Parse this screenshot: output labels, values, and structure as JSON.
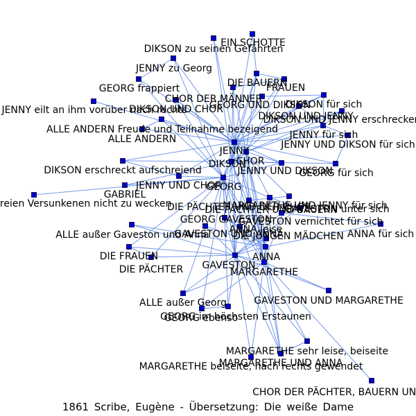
{
  "caption": "1861 Scribe, Eugène - Übersetzung: Die weiße Dame",
  "colors": {
    "edge": "#5b86e5",
    "node_fill": "#0000cc",
    "node_stroke": "#000033",
    "label": "#000000"
  },
  "nodes": [
    {
      "id": "ein_schotte",
      "label": "EIN SCHOTTE"
    },
    {
      "id": "dikson_gefaehrten",
      "label": "DIKSON zu seinen Gefährten"
    },
    {
      "id": "jenny_zu_georg",
      "label": "JENNY zu Georg"
    },
    {
      "id": "die_bauern",
      "label": "DIE BAUERN"
    },
    {
      "id": "frauen",
      "label": "FRAUEN"
    },
    {
      "id": "georg_frappiert",
      "label": "GEORG frappiert"
    },
    {
      "id": "chor_der_maenner",
      "label": "CHOR DER MÄNNER"
    },
    {
      "id": "georg_und_dikson",
      "label": "GEORG UND DIKSON"
    },
    {
      "id": "dikson_fuer_sich",
      "label": "DIKSON für sich"
    },
    {
      "id": "jenny_eilt",
      "label": "JENNY eilt an ihm vorüber nach rechts"
    },
    {
      "id": "dikson_und_chor",
      "label": "DIKSON UND CHOR"
    },
    {
      "id": "dikson_und_jenny",
      "label": "DIKSON UND JENNY"
    },
    {
      "id": "dikson_jenny_erschrecken",
      "label": "DIKSON UND JENNY erschrecken"
    },
    {
      "id": "alle_andern_freude",
      "label": "ALLE ANDERN Freude und Teilnahme bezeigend"
    },
    {
      "id": "jenny_fuer_sich",
      "label": "JENNY für sich"
    },
    {
      "id": "alle_andern",
      "label": "ALLE ANDERN"
    },
    {
      "id": "jenny_und_dikson_fs",
      "label": "JENNY UND DIKSON für sich"
    },
    {
      "id": "jenny",
      "label": "JENNY"
    },
    {
      "id": "chor",
      "label": "CHOR"
    },
    {
      "id": "dikson",
      "label": "DIKSON"
    },
    {
      "id": "jenny_und_dikson",
      "label": "JENNY UND DIKSON"
    },
    {
      "id": "dikson_erschreckt",
      "label": "DIKSON erschreckt aufschreiend"
    },
    {
      "id": "georg_fuer_sich",
      "label": "GEORG für sich"
    },
    {
      "id": "jenny_und_chor",
      "label": "JENNY UND CHOR"
    },
    {
      "id": "georg",
      "label": "GEORG"
    },
    {
      "id": "gabriel",
      "label": "GABRIEL"
    },
    {
      "id": "georg_traeumereien",
      "label": "GEORG seine Träumereien Versunkenen nicht zu wecken"
    },
    {
      "id": "die_paechter_chor",
      "label": "DIE PÄCHTER UND DER CHOR"
    },
    {
      "id": "margarethe_jenny_fs",
      "label": "MARGARETHE UND JENNY für sich"
    },
    {
      "id": "die_paechter_bauern",
      "label": "DIE PÄCHTER UND BAUERN"
    },
    {
      "id": "gaveston_unter_sich",
      "label": "GAVESTON unter sich"
    },
    {
      "id": "gaveston_vernichtet",
      "label": "GAVESTON vernichtet für sich"
    },
    {
      "id": "georg_gaveston",
      "label": "GEORG GAVESTON"
    },
    {
      "id": "anna_fuer_sich",
      "label": "ANNA für sich"
    },
    {
      "id": "anna_leise",
      "label": "ANNA leise"
    },
    {
      "id": "alle_ausser_gaveston",
      "label": "ALLE außer Gaveston und Anna"
    },
    {
      "id": "gaveston_und_anna",
      "label": "GAVESTON UND ANNA"
    },
    {
      "id": "die_jungen_maedchen",
      "label": "DIE JUNGEN MÄDCHEN"
    },
    {
      "id": "die_frauen",
      "label": "DIE FRAUEN"
    },
    {
      "id": "anna",
      "label": "ANNA"
    },
    {
      "id": "die_paechter",
      "label": "DIE PÄCHTER"
    },
    {
      "id": "gaveston",
      "label": "GAVESTON"
    },
    {
      "id": "margarethe",
      "label": "MARGARETHE"
    },
    {
      "id": "alle_ausser_georg",
      "label": "ALLE außer Georg"
    },
    {
      "id": "gaveston_margarethe",
      "label": "GAVESTON UND MARGARETHE"
    },
    {
      "id": "georg_erstaunen",
      "label": "GEORG im höchsten Erstaunen"
    },
    {
      "id": "georg_ebenso",
      "label": "GEORG ebenso"
    },
    {
      "id": "margarethe_leise",
      "label": "MARGARETHE sehr leise, beiseite"
    },
    {
      "id": "margarethe_und_anna",
      "label": "MARGARETHE UND ANNA"
    },
    {
      "id": "margarethe_beiseite",
      "label": "MARGARETHE beiseite, nach rechts gewendet"
    },
    {
      "id": "chor_paechter_bauern",
      "label": "CHOR DER PÄCHTER, BAUERN UND BÄUERINNEN"
    }
  ],
  "edges": [
    [
      "jenny",
      "chor"
    ],
    [
      "jenny",
      "dikson"
    ],
    [
      "jenny",
      "georg"
    ],
    [
      "jenny",
      "dikson_und_chor"
    ],
    [
      "jenny",
      "alle_andern"
    ],
    [
      "jenny",
      "jenny_und_dikson"
    ],
    [
      "jenny",
      "ein_schotte"
    ],
    [
      "jenny",
      "dikson_gefaehrten"
    ],
    [
      "jenny",
      "jenny_zu_georg"
    ],
    [
      "jenny",
      "georg_frappiert"
    ],
    [
      "jenny",
      "chor_der_maenner"
    ],
    [
      "jenny",
      "dikson_fuer_sich"
    ],
    [
      "jenny",
      "jenny_eilt"
    ],
    [
      "jenny",
      "alle_andern_freude"
    ],
    [
      "jenny",
      "die_bauern"
    ],
    [
      "jenny",
      "frauen"
    ],
    [
      "jenny",
      "georg_und_dikson"
    ],
    [
      "jenny",
      "dikson_und_jenny"
    ],
    [
      "jenny",
      "jenny_fuer_sich"
    ],
    [
      "jenny",
      "jenny_und_dikson_fs"
    ],
    [
      "jenny",
      "dikson_erschreckt"
    ],
    [
      "jenny",
      "georg_fuer_sich"
    ],
    [
      "jenny",
      "jenny_und_chor"
    ],
    [
      "jenny",
      "gaveston"
    ],
    [
      "jenny",
      "margarethe"
    ],
    [
      "jenny",
      "anna"
    ],
    [
      "jenny",
      "die_paechter_chor"
    ],
    [
      "jenny",
      "margarethe_jenny_fs"
    ],
    [
      "jenny",
      "dikson_jenny_erschrecken"
    ],
    [
      "dikson",
      "georg"
    ],
    [
      "dikson",
      "chor"
    ],
    [
      "dikson",
      "jenny_und_dikson"
    ],
    [
      "dikson",
      "dikson_gefaehrten"
    ],
    [
      "dikson",
      "die_bauern"
    ],
    [
      "dikson",
      "dikson_erschreckt"
    ],
    [
      "dikson",
      "gaveston"
    ],
    [
      "dikson",
      "margarethe"
    ],
    [
      "dikson",
      "anna"
    ],
    [
      "dikson",
      "georg_gaveston"
    ],
    [
      "dikson",
      "chor_der_maenner"
    ],
    [
      "dikson",
      "dikson_und_jenny"
    ],
    [
      "dikson",
      "georg_fuer_sich"
    ],
    [
      "dikson",
      "gabriel"
    ],
    [
      "georg",
      "chor"
    ],
    [
      "georg",
      "gaveston"
    ],
    [
      "georg",
      "margarethe"
    ],
    [
      "georg",
      "anna"
    ],
    [
      "georg",
      "georg_traeumereien"
    ],
    [
      "georg",
      "gabriel"
    ],
    [
      "georg",
      "jenny_und_chor"
    ],
    [
      "georg",
      "georg_erstaunen"
    ],
    [
      "georg",
      "georg_ebenso"
    ],
    [
      "georg",
      "die_paechter"
    ],
    [
      "georg",
      "die_frauen"
    ],
    [
      "georg",
      "alle_ausser_georg"
    ],
    [
      "georg",
      "georg_gaveston"
    ],
    [
      "georg",
      "die_paechter_bauern"
    ],
    [
      "georg",
      "jenny_zu_georg"
    ],
    [
      "georg",
      "georg_frappiert"
    ],
    [
      "georg",
      "dikson_und_chor"
    ],
    [
      "georg",
      "jenny_und_dikson"
    ],
    [
      "georg",
      "margarethe_und_anna"
    ],
    [
      "georg",
      "margarethe_beiseite"
    ],
    [
      "georg",
      "alle_andern_freude"
    ],
    [
      "georg",
      "georg_und_dikson"
    ],
    [
      "chor",
      "die_bauern"
    ],
    [
      "chor",
      "frauen"
    ],
    [
      "chor",
      "gaveston"
    ],
    [
      "chor",
      "margarethe"
    ],
    [
      "chor",
      "anna"
    ],
    [
      "chor",
      "die_paechter_chor"
    ],
    [
      "chor",
      "die_jungen_maedchen"
    ],
    [
      "chor",
      "chor_der_maenner"
    ],
    [
      "chor",
      "jenny_und_dikson"
    ],
    [
      "chor",
      "dikson_und_chor"
    ],
    [
      "chor",
      "die_paechter_bauern"
    ],
    [
      "chor",
      "jenny_fuer_sich"
    ],
    [
      "chor",
      "dikson_jenny_erschrecken"
    ],
    [
      "gaveston",
      "anna"
    ],
    [
      "gaveston",
      "margarethe"
    ],
    [
      "gaveston",
      "gaveston_und_anna"
    ],
    [
      "gaveston",
      "gaveston_margarethe"
    ],
    [
      "gaveston",
      "gaveston_unter_sich"
    ],
    [
      "gaveston",
      "gaveston_vernichtet"
    ],
    [
      "gaveston",
      "georg_gaveston"
    ],
    [
      "gaveston",
      "alle_ausser_gaveston"
    ],
    [
      "gaveston",
      "die_jungen_maedchen"
    ],
    [
      "gaveston",
      "die_frauen"
    ],
    [
      "gaveston",
      "die_paechter"
    ],
    [
      "gaveston",
      "alle_ausser_georg"
    ],
    [
      "gaveston",
      "margarethe_und_anna"
    ],
    [
      "gaveston",
      "georg_erstaunen"
    ],
    [
      "gaveston",
      "margarethe_leise"
    ],
    [
      "anna",
      "margarethe"
    ],
    [
      "anna",
      "anna_fuer_sich"
    ],
    [
      "anna",
      "anna_leise"
    ],
    [
      "anna",
      "gaveston_und_anna"
    ],
    [
      "anna",
      "margarethe_und_anna"
    ],
    [
      "anna",
      "die_paechter_chor"
    ],
    [
      "anna",
      "alle_ausser_gaveston"
    ],
    [
      "anna",
      "georg_gaveston"
    ],
    [
      "anna",
      "die_paechter_bauern"
    ],
    [
      "margarethe",
      "margarethe_leise"
    ],
    [
      "margarethe",
      "margarethe_beiseite"
    ],
    [
      "margarethe",
      "margarethe_und_anna"
    ],
    [
      "margarethe",
      "gaveston_margarethe"
    ],
    [
      "margarethe",
      "chor_paechter_bauern"
    ],
    [
      "margarethe",
      "margarethe_jenny_fs"
    ],
    [
      "margarethe",
      "die_paechter_chor"
    ],
    [
      "margarethe",
      "alle_ausser_georg"
    ],
    [
      "margarethe",
      "georg_ebenso"
    ],
    [
      "margarethe",
      "anna_leise"
    ],
    [
      "dikson_fuer_sich",
      "jenny_fuer_sich"
    ],
    [
      "dikson_fuer_sich",
      "dikson_und_jenny"
    ],
    [
      "dikson_fuer_sich",
      "georg_und_dikson"
    ],
    [
      "jenny_und_dikson_fs",
      "georg_fuer_sich"
    ],
    [
      "jenny_und_dikson_fs",
      "jenny_fuer_sich"
    ],
    [
      "die_bauern",
      "frauen"
    ],
    [
      "chor_der_maenner",
      "frauen"
    ],
    [
      "dikson_jenny_erschrecken",
      "jenny_fuer_sich"
    ],
    [
      "dikson_und_jenny",
      "jenny_fuer_sich"
    ],
    [
      "gaveston_vernichtet",
      "anna_fuer_sich"
    ],
    [
      "die_paechter_chor",
      "margarethe_jenny_fs"
    ],
    [
      "gaveston_unter_sich",
      "die_paechter_bauern"
    ],
    [
      "georg_gaveston",
      "anna_leise"
    ],
    [
      "die_frauen",
      "die_paechter"
    ],
    [
      "margarethe_leise",
      "margarethe_und_anna"
    ],
    [
      "georg_erstaunen",
      "georg_ebenso"
    ],
    [
      "ein_schotte",
      "die_bauern"
    ],
    [
      "dikson_erschreckt",
      "jenny_und_chor"
    ],
    [
      "alle_andern",
      "alle_andern_freude"
    ],
    [
      "georg_frappiert",
      "jenny_zu_georg"
    ]
  ]
}
